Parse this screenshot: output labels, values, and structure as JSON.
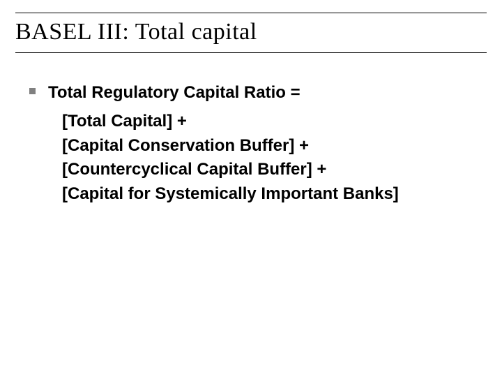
{
  "slide": {
    "title": "BASEL III: Total capital",
    "title_fontsize": 34,
    "title_font": "serif",
    "title_color": "#000000",
    "title_border_color": "#000000",
    "bullet_color": "#808080",
    "bullet_size": 9,
    "body_font": "Arial",
    "body_fontsize": 24,
    "body_weight": 700,
    "body_color": "#000000",
    "background_color": "#ffffff",
    "content": {
      "main": "Total Regulatory Capital Ratio =",
      "lines": [
        "[Total Capital] +",
        "[Capital Conservation Buffer] +",
        "[Countercyclical Capital Buffer] +",
        "[Capital for Systemically Important Banks]"
      ]
    }
  }
}
